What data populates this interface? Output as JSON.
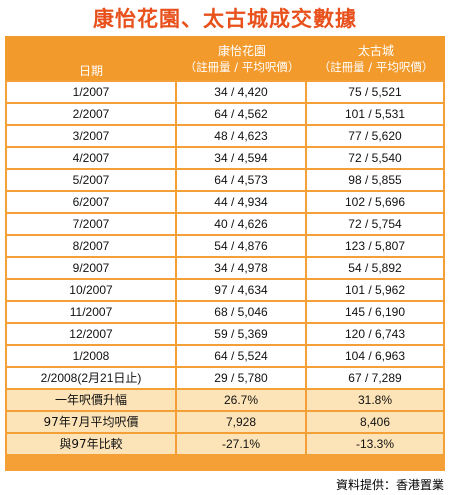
{
  "title": "康怡花園、太古城成交數據",
  "header": {
    "date_label": "日期",
    "col2_name": "康怡花園",
    "col2_sub": "（註冊量 / 平均呎價）",
    "col3_name": "太古城",
    "col3_sub": "（註冊量 / 平均呎價）"
  },
  "rows": [
    {
      "date": "1/2007",
      "kh": "34 / 4,420",
      "tkc": "75 / 5,521"
    },
    {
      "date": "2/2007",
      "kh": "64 / 4,562",
      "tkc": "101 / 5,531"
    },
    {
      "date": "3/2007",
      "kh": "48 / 4,623",
      "tkc": "77 / 5,620"
    },
    {
      "date": "4/2007",
      "kh": "34 / 4,594",
      "tkc": "72 / 5,540"
    },
    {
      "date": "5/2007",
      "kh": "64 / 4,573",
      "tkc": "98 / 5,855"
    },
    {
      "date": "6/2007",
      "kh": "44 / 4,934",
      "tkc": "102 / 5,696"
    },
    {
      "date": "7/2007",
      "kh": "40 / 4,626",
      "tkc": "72 / 5,754"
    },
    {
      "date": "8/2007",
      "kh": "54 / 4,876",
      "tkc": "123 / 5,807"
    },
    {
      "date": "9/2007",
      "kh": "34 / 4,978",
      "tkc": "54 / 5,892"
    },
    {
      "date": "10/2007",
      "kh": "97 / 4,634",
      "tkc": "101 / 5,962"
    },
    {
      "date": "11/2007",
      "kh": "68 / 5,046",
      "tkc": "145 / 6,190"
    },
    {
      "date": "12/2007",
      "kh": "59 / 5,369",
      "tkc": "120 / 6,743"
    },
    {
      "date": "1/2008",
      "kh": "64 / 5,524",
      "tkc": "104 / 6,963"
    },
    {
      "date": "2/2008(2月21日止)",
      "kh": "29 / 5,780",
      "tkc": "67 / 7,289"
    }
  ],
  "summary": [
    {
      "label": "一年呎價升幅",
      "kh": "26.7%",
      "tkc": "31.8%"
    },
    {
      "label": "97年7月平均呎價",
      "kh": "7,928",
      "tkc": "8,406"
    },
    {
      "label": "與97年比較",
      "kh": "-27.1%",
      "tkc": "-13.3%"
    }
  ],
  "credit": "資料提供：香港置業",
  "colors": {
    "title": "#e8501c",
    "header_bg": "#f39a2c",
    "summary_bg": "#fde4b8"
  }
}
